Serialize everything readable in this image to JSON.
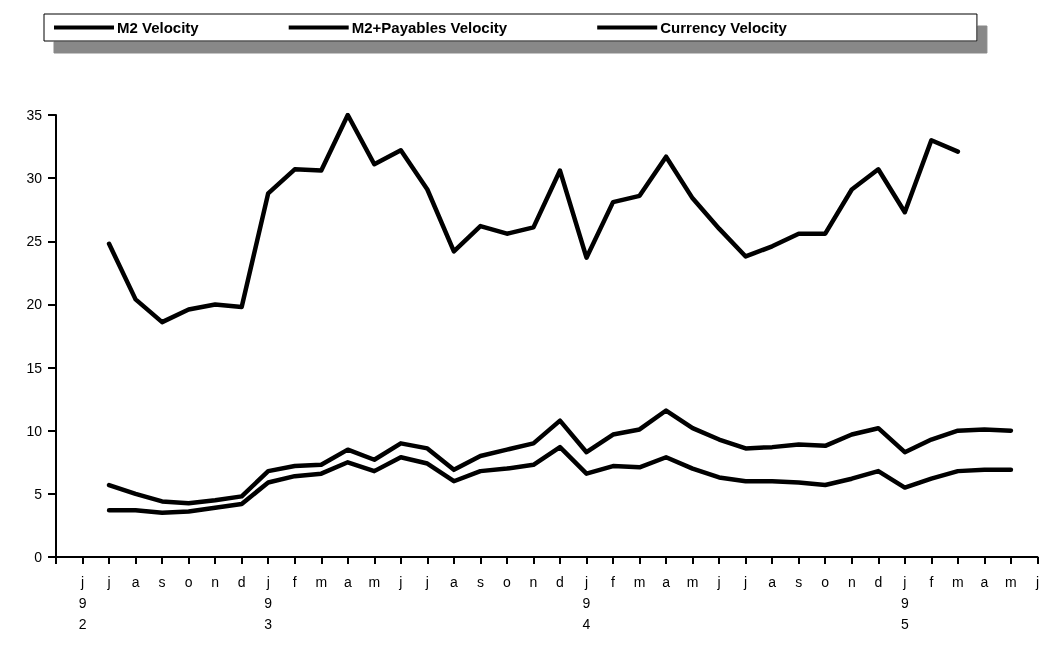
{
  "chart_data": {
    "type": "line",
    "categories": [
      null,
      "j\n9\n2",
      "j",
      "a",
      "s",
      "o",
      "n",
      "d",
      "j\n9\n3",
      "f",
      "m",
      "a",
      "m",
      "j",
      "j",
      "a",
      "s",
      "o",
      "n",
      "d",
      "j\n9\n4",
      "f",
      "m",
      "a",
      "m",
      "j",
      "j",
      "a",
      "s",
      "o",
      "n",
      "d",
      "j\n9\n5",
      "f",
      "m",
      "a",
      "m",
      "j"
    ],
    "series": [
      {
        "name": "M2 Velocity",
        "color": "#000000",
        "values": [
          null,
          null,
          5.7,
          5.0,
          4.4,
          4.25,
          4.5,
          4.8,
          6.8,
          7.2,
          7.3,
          8.5,
          7.7,
          9.0,
          8.6,
          6.9,
          8.0,
          8.5,
          9.0,
          10.8,
          8.3,
          9.7,
          10.1,
          11.6,
          10.2,
          9.3,
          8.6,
          8.7,
          8.9,
          8.8,
          9.7,
          10.2,
          8.3,
          9.3,
          10.0,
          10.1,
          10.0,
          null
        ]
      },
      {
        "name": "M2+Payables Velocity",
        "color": "#000000",
        "values": [
          null,
          null,
          3.7,
          3.7,
          3.5,
          3.6,
          3.9,
          4.2,
          5.9,
          6.4,
          6.6,
          7.5,
          6.8,
          7.9,
          7.4,
          6.0,
          6.8,
          7.0,
          7.3,
          8.7,
          6.6,
          7.2,
          7.1,
          7.9,
          7.0,
          6.3,
          6.0,
          6.0,
          5.9,
          5.7,
          6.2,
          6.8,
          5.5,
          6.2,
          6.8,
          6.9,
          6.9,
          null
        ]
      },
      {
        "name": "Currency Velocity",
        "color": "#000000",
        "values": [
          null,
          null,
          24.8,
          20.4,
          18.6,
          19.6,
          20.0,
          19.8,
          28.8,
          30.7,
          30.6,
          35.0,
          31.1,
          32.2,
          29.1,
          24.2,
          26.2,
          25.6,
          26.1,
          30.6,
          23.7,
          28.1,
          28.6,
          31.7,
          28.4,
          26.0,
          23.8,
          24.6,
          25.6,
          25.6,
          29.1,
          30.7,
          27.3,
          33.0,
          32.1,
          null,
          null,
          null
        ]
      }
    ],
    "ylim": [
      0,
      35
    ],
    "yticks": [
      0,
      5,
      10,
      15,
      20,
      25,
      30,
      35
    ],
    "legend": "top",
    "marker": "none",
    "line_style": "solid"
  }
}
